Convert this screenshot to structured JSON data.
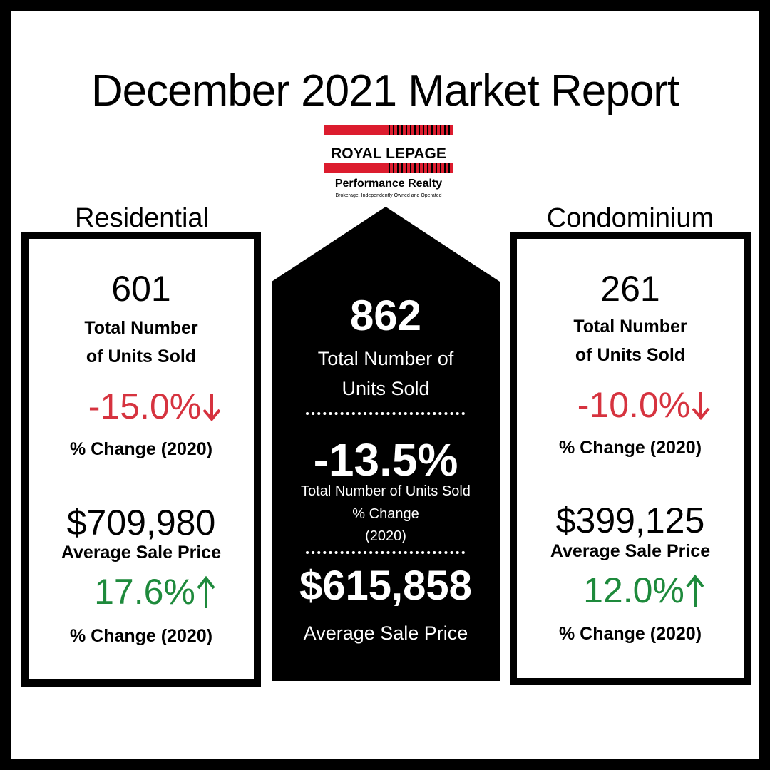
{
  "title": "December 2021 Market Report",
  "logo": {
    "brand": "ROYAL LEPAGE",
    "office": "Performance Realty",
    "tagline": "Brokerage, Independently Owned and Operated"
  },
  "residential": {
    "heading": "Residential",
    "units": "601",
    "units_label": [
      "Total Number",
      "of Units Sold"
    ],
    "units_change": "-15.0%",
    "units_change_label": "% Change (2020)",
    "price": "$709,980",
    "price_label": "Average Sale Price",
    "price_change": "17.6%",
    "price_change_label": "% Change (2020)"
  },
  "total": {
    "units": "862",
    "units_label": [
      "Total Number of",
      "Units Sold"
    ],
    "units_change": "-13.5%",
    "units_change_label": [
      "Total Number of Units Sold",
      "% Change",
      "(2020)"
    ],
    "price": "$615,858",
    "price_label": "Average Sale Price"
  },
  "condominium": {
    "heading": "Condominium",
    "units": "261",
    "units_label": [
      "Total Number",
      "of Units Sold"
    ],
    "units_change": "-10.0%",
    "units_change_label": "% Change (2020)",
    "price": "$399,125",
    "price_label": "Average Sale Price",
    "price_change": "12.0%",
    "price_change_label": "% Change (2020)"
  }
}
